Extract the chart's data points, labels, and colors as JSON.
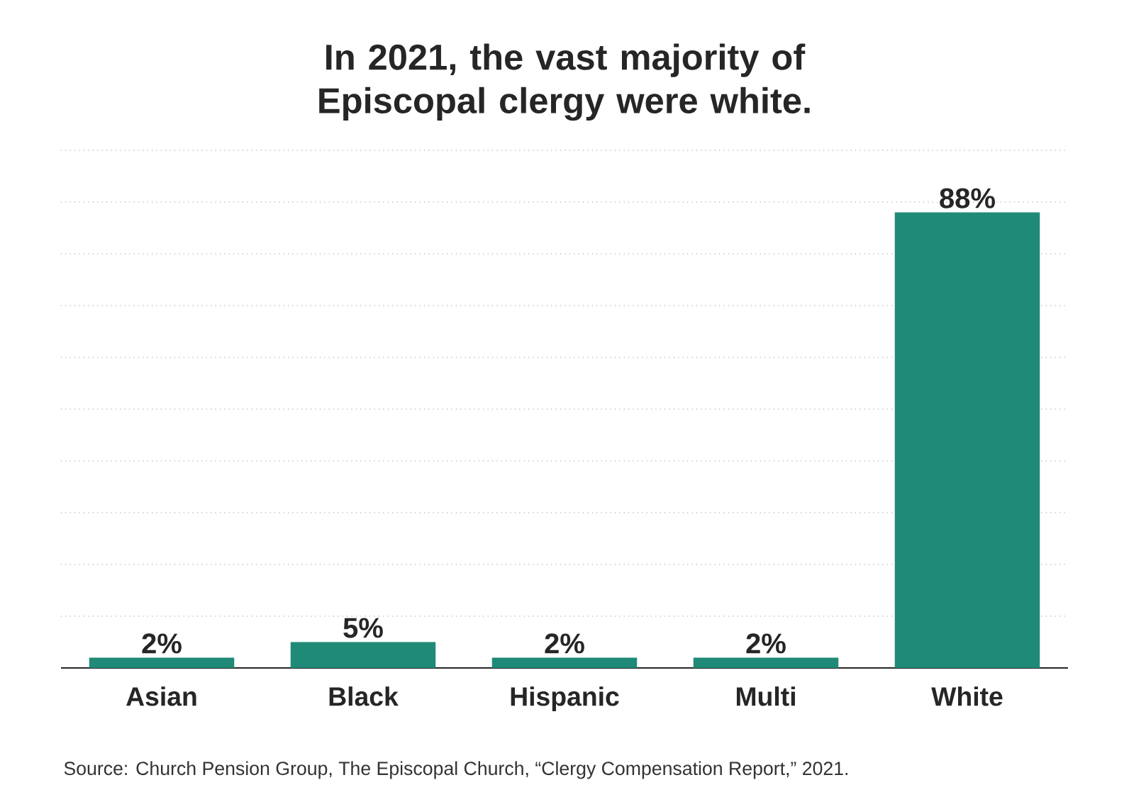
{
  "chart_data": {
    "type": "bar",
    "title": "In 2021, the vast majority of Episcopal clergy were white.",
    "categories": [
      "Asian",
      "Black",
      "Hispanic",
      "Multi",
      "White"
    ],
    "values": [
      2,
      5,
      2,
      2,
      88
    ],
    "color": "#1f8a78",
    "value_labels": [
      "2%",
      "5%",
      "2%",
      "2%",
      "88%"
    ],
    "ylim": [
      0,
      100
    ],
    "yticks": [
      {
        "value": 10,
        "label": null
      },
      {
        "value": 20,
        "label": null
      },
      {
        "value": 30,
        "label": null
      },
      {
        "value": 40,
        "label": null
      },
      {
        "value": 50,
        "label": null
      },
      {
        "value": 60,
        "label": null
      },
      {
        "value": 70,
        "label": null
      },
      {
        "value": 80,
        "label": null
      },
      {
        "value": 90,
        "label": null
      },
      {
        "value": 100,
        "label": null
      }
    ],
    "grid": "y",
    "tick_labels": "x",
    "annotations": [
      "Source: Church Pension Group, The Episcopal Church, “Clergy Compensation Report,” 2021."
    ]
  }
}
